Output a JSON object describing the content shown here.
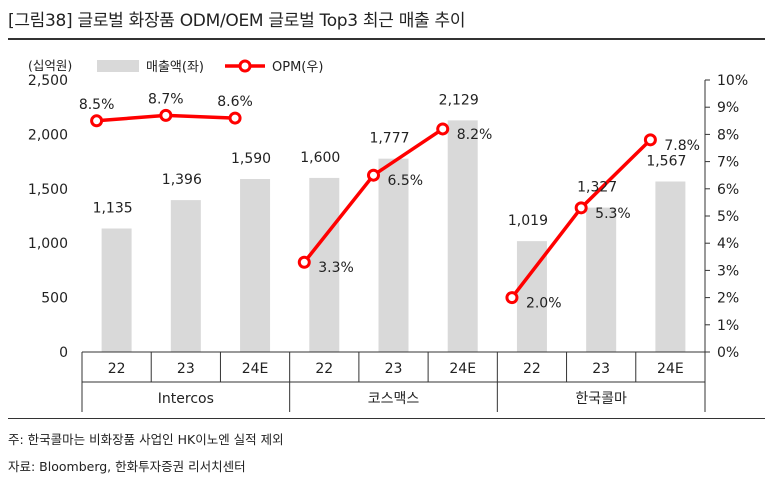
{
  "title": "[그림38]  글로벌 화장품 ODM/OEM 글로벌 Top3 최근 매출 추이",
  "unit_label": "(십억원)",
  "footnote": "주: 한국콜마는 비화장품 사업인 HK이노엔 실적 제외",
  "source": "자료: Bloomberg, 한화투자증권 리서치센터",
  "chart_data": {
    "type": "bar",
    "legend": [
      {
        "name": "매출액(좌)",
        "kind": "bar",
        "color": "#d9d9d9"
      },
      {
        "name": "OPM(우)",
        "kind": "line",
        "color": "#ff0000"
      }
    ],
    "left_axis": {
      "min": 0,
      "max": 2500,
      "step": 500,
      "ticks": [
        "0",
        "500",
        "1,000",
        "1,500",
        "2,000",
        "2,500"
      ]
    },
    "right_axis": {
      "min": 0,
      "max": 10,
      "step": 1,
      "ticks": [
        "0%",
        "1%",
        "2%",
        "3%",
        "4%",
        "5%",
        "6%",
        "7%",
        "8%",
        "9%",
        "10%"
      ]
    },
    "groups": [
      {
        "name": "Intercos",
        "categories": [
          "22",
          "23",
          "24E"
        ],
        "sales": [
          1135,
          1396,
          1590
        ],
        "sales_labels": [
          "1,135",
          "1,396",
          "1,590"
        ],
        "opm": [
          8.5,
          8.7,
          8.6
        ],
        "opm_labels": [
          "8.5%",
          "8.7%",
          "8.6%"
        ]
      },
      {
        "name": "코스맥스",
        "categories": [
          "22",
          "23",
          "24E"
        ],
        "sales": [
          1600,
          1777,
          2129
        ],
        "sales_labels": [
          "1,600",
          "1,777",
          "2,129"
        ],
        "opm": [
          3.3,
          6.5,
          8.2
        ],
        "opm_labels": [
          "3.3%",
          "6.5%",
          "8.2%"
        ]
      },
      {
        "name": "한국콜마",
        "categories": [
          "22",
          "23",
          "24E"
        ],
        "sales": [
          1019,
          1327,
          1567
        ],
        "sales_labels": [
          "1,019",
          "1,327",
          "1,567"
        ],
        "opm": [
          2.0,
          5.3,
          7.8
        ],
        "opm_labels": [
          "2.0%",
          "5.3%",
          "7.8%"
        ]
      }
    ],
    "bar_color": "#d9d9d9",
    "line_color": "#ff0000",
    "grid": false
  }
}
